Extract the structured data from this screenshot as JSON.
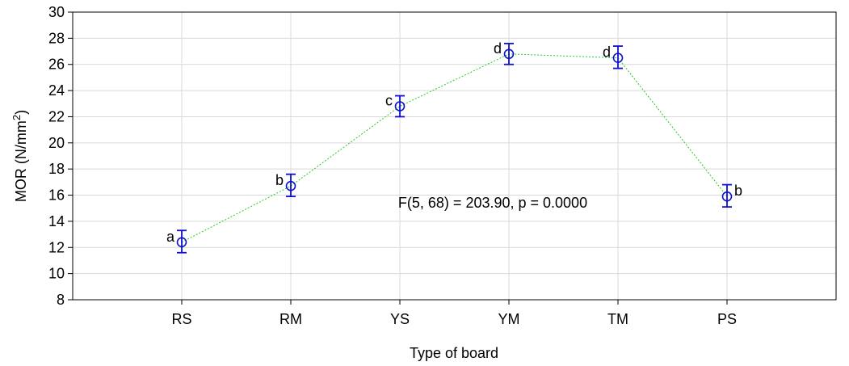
{
  "chart_data": {
    "type": "line",
    "title": "",
    "xlabel": "Type of board",
    "ylabel_main": "MOR (N/mm",
    "ylabel_sup": "2",
    "ylabel_tail": ")",
    "ylim": [
      8,
      30
    ],
    "yticks": [
      8,
      10,
      12,
      14,
      16,
      18,
      20,
      22,
      24,
      26,
      28,
      30
    ],
    "categories": [
      "RS",
      "RM",
      "YS",
      "YM",
      "TM",
      "PS"
    ],
    "values": [
      12.4,
      16.7,
      22.8,
      26.8,
      26.5,
      15.9
    ],
    "error_low": [
      11.6,
      15.9,
      22.0,
      26.0,
      25.7,
      15.1
    ],
    "error_high": [
      13.3,
      17.6,
      23.6,
      27.6,
      27.4,
      16.8
    ],
    "group_labels": [
      "a",
      "b",
      "c",
      "d",
      "d",
      "b"
    ],
    "annotation": "F(5, 68) = 203.90, p = 0.0000",
    "grid": true,
    "colors": {
      "line": "#22cc22",
      "marker": "#1010cc"
    }
  }
}
